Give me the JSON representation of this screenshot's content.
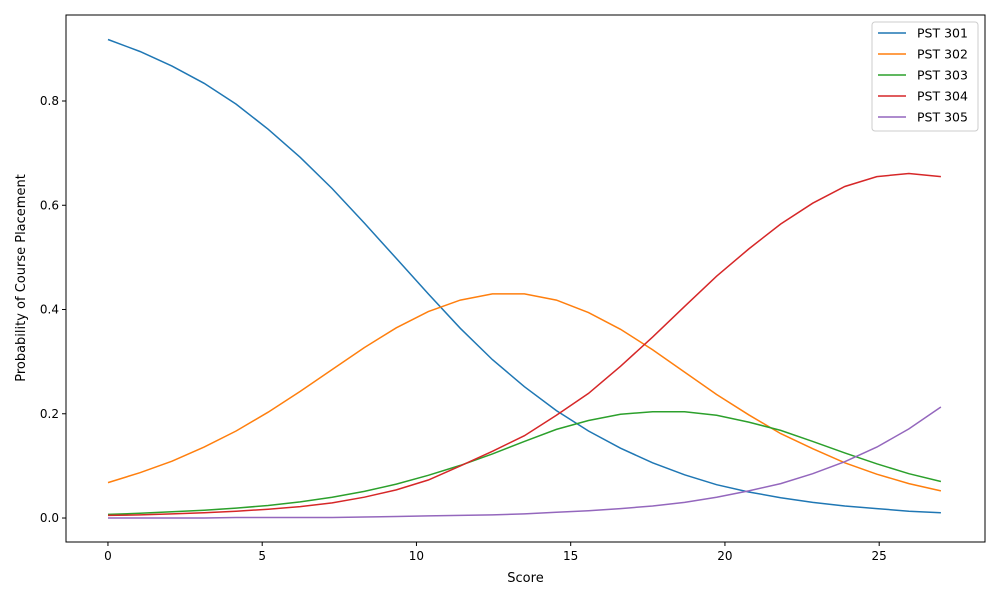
{
  "chart_data": {
    "type": "line",
    "title": "",
    "xlabel": "Score",
    "ylabel": "Probability of Course Placement",
    "xlim": [
      -1.36,
      28.43
    ],
    "ylim": [
      -0.046,
      0.965
    ],
    "xticks": [
      0,
      5,
      10,
      15,
      20,
      25
    ],
    "xtick_labels": [
      "0",
      "5",
      "10",
      "15",
      "20",
      "25"
    ],
    "yticks": [
      0.0,
      0.2,
      0.4,
      0.6,
      0.8
    ],
    "ytick_labels": [
      "0.0",
      "0.2",
      "0.4",
      "0.6",
      "0.8"
    ],
    "grid": false,
    "legend_position": "top-right",
    "x": [
      0,
      1.038,
      2.077,
      3.115,
      4.154,
      5.192,
      6.231,
      7.269,
      8.308,
      9.346,
      10.385,
      11.423,
      12.462,
      13.5,
      14.538,
      15.577,
      16.615,
      17.654,
      18.692,
      19.731,
      20.769,
      21.808,
      22.846,
      23.885,
      24.923,
      25.962,
      27
    ],
    "series": [
      {
        "name": "PST 301",
        "color": "#1f77b4",
        "values": [
          0.918,
          0.895,
          0.867,
          0.834,
          0.794,
          0.746,
          0.692,
          0.632,
          0.566,
          0.498,
          0.43,
          0.364,
          0.304,
          0.252,
          0.206,
          0.167,
          0.134,
          0.106,
          0.083,
          0.064,
          0.05,
          0.039,
          0.03,
          0.023,
          0.018,
          0.013,
          0.01
        ]
      },
      {
        "name": "PST 302",
        "color": "#ff7f0e",
        "values": [
          0.068,
          0.087,
          0.109,
          0.136,
          0.167,
          0.203,
          0.243,
          0.285,
          0.327,
          0.365,
          0.396,
          0.418,
          0.43,
          0.43,
          0.418,
          0.394,
          0.362,
          0.323,
          0.28,
          0.237,
          0.198,
          0.162,
          0.133,
          0.106,
          0.084,
          0.066,
          0.052
        ]
      },
      {
        "name": "PST 303",
        "color": "#2ca02c",
        "values": [
          0.007,
          0.009,
          0.012,
          0.015,
          0.019,
          0.024,
          0.031,
          0.04,
          0.051,
          0.065,
          0.082,
          0.101,
          0.123,
          0.147,
          0.17,
          0.187,
          0.199,
          0.204,
          0.204,
          0.197,
          0.184,
          0.168,
          0.147,
          0.125,
          0.104,
          0.085,
          0.07
        ]
      },
      {
        "name": "PST 304",
        "color": "#d62728",
        "values": [
          0.005,
          0.006,
          0.008,
          0.01,
          0.013,
          0.017,
          0.022,
          0.029,
          0.04,
          0.054,
          0.073,
          0.1,
          0.128,
          0.158,
          0.197,
          0.239,
          0.291,
          0.347,
          0.406,
          0.464,
          0.516,
          0.564,
          0.604,
          0.636,
          0.655,
          0.661,
          0.655
        ]
      },
      {
        "name": "PST 305",
        "color": "#9467bd",
        "values": [
          0.0,
          0.0,
          0.0,
          0.0,
          0.001,
          0.001,
          0.001,
          0.001,
          0.002,
          0.003,
          0.004,
          0.005,
          0.006,
          0.008,
          0.011,
          0.014,
          0.018,
          0.023,
          0.03,
          0.04,
          0.052,
          0.066,
          0.085,
          0.108,
          0.136,
          0.171,
          0.213
        ]
      }
    ]
  }
}
